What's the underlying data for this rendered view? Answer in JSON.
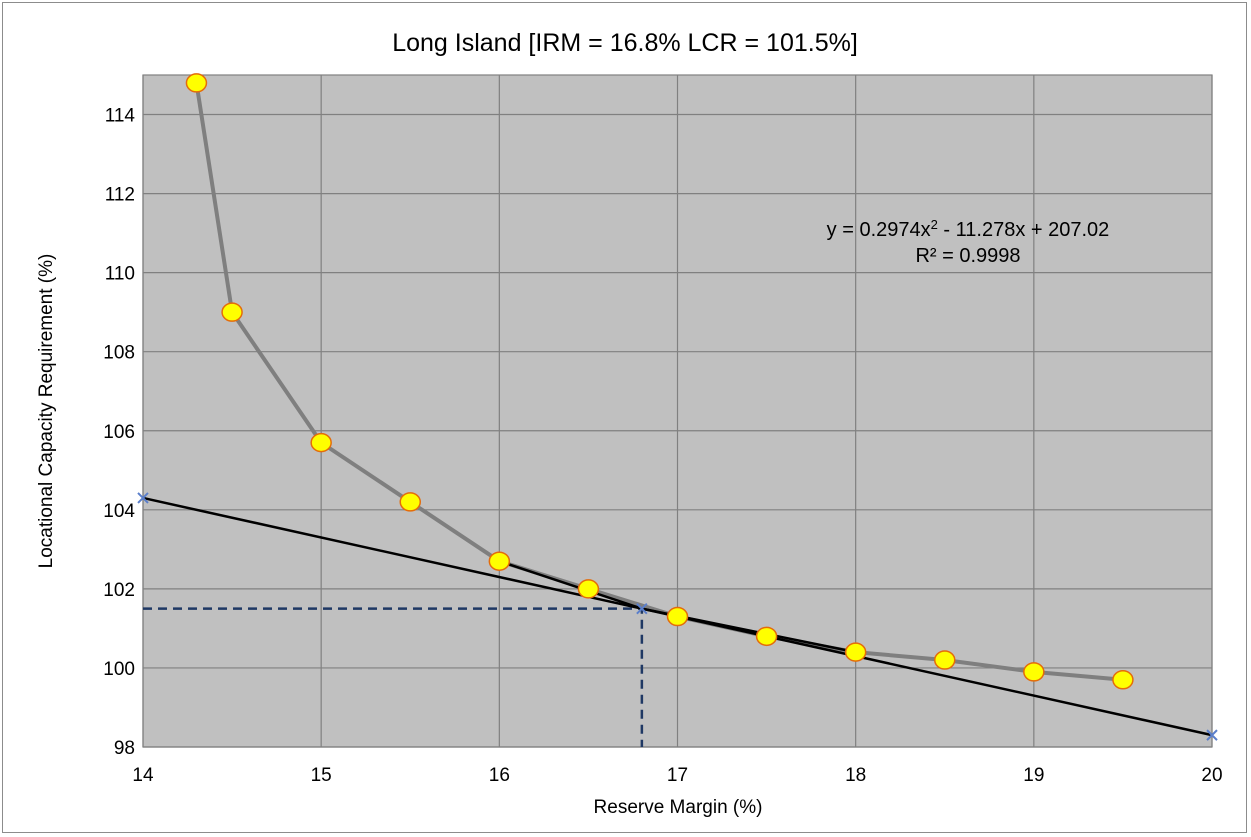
{
  "chart_data": {
    "type": "scatter",
    "title": "Long Island [IRM = 16.8% LCR = 101.5%]",
    "xlabel": "Reserve Margin (%)",
    "ylabel": "Locational Capacity Requirement (%)",
    "xlim": [
      14,
      20
    ],
    "ylim": [
      98,
      115
    ],
    "x_ticks": [
      "14",
      "15",
      "16",
      "17",
      "18",
      "19",
      "20"
    ],
    "y_ticks": [
      "98",
      "100",
      "102",
      "104",
      "106",
      "108",
      "110",
      "112",
      "114"
    ],
    "grid": true,
    "series": [
      {
        "x": [
          14.3,
          14.5,
          15.0,
          15.5,
          16.0,
          16.5,
          17.0,
          17.5,
          18.0,
          18.5,
          19.0,
          19.5
        ],
        "y": [
          114.8,
          109.0,
          105.7,
          104.2,
          102.7,
          102.0,
          101.3,
          100.8,
          100.4,
          100.2,
          99.9,
          99.7
        ],
        "marker": "circle",
        "marker_color": "#ffff00",
        "line_color": "#7f7f7f"
      }
    ],
    "fit_curve": {
      "x": [
        16.0,
        16.8,
        18.0
      ],
      "y": [
        102.7,
        101.5,
        100.4
      ],
      "line_color": "#000000"
    },
    "tangent_line": {
      "x": [
        14.0,
        16.8,
        20.0
      ],
      "y": [
        104.3,
        101.5,
        98.3
      ],
      "marker": "x",
      "marker_color": "#5b7fcb",
      "line_color": "#000000"
    },
    "reference_point": {
      "x": 16.8,
      "y": 101.5,
      "line_color": "#1f3864",
      "line_style": "dashed"
    },
    "annotations": {
      "equation_parts": [
        "y = 0.2974x",
        "2",
        " - 11.278x + 207.02"
      ],
      "r_squared": "R² = 0.9998"
    },
    "colors": {
      "plot_background": "#c0c0c0",
      "gridline": "#808080",
      "circle_stroke": "#e46c0a"
    }
  }
}
